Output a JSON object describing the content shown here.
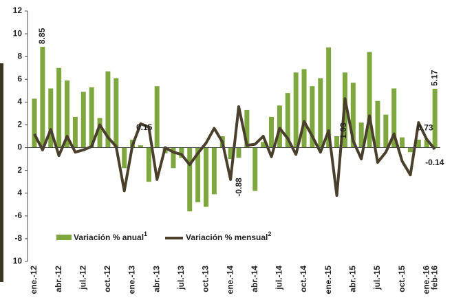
{
  "chart_data": {
    "type": "bar_line",
    "categories": [
      "ene.-12",
      null,
      null,
      "abr.-12",
      null,
      null,
      "jul.-12",
      null,
      null,
      "oct.-12",
      null,
      null,
      "ene.-13",
      null,
      null,
      "abr.-13",
      null,
      null,
      "jul.-13",
      null,
      null,
      "oct.-13",
      null,
      null,
      "ene.-14",
      null,
      null,
      "abr.-14",
      null,
      null,
      "jul.-14",
      null,
      null,
      "oct.-14",
      null,
      null,
      "ene.-15",
      null,
      null,
      "abr.-15",
      null,
      null,
      "jul.-15",
      null,
      null,
      "oct.-15",
      null,
      null,
      "ene.-16",
      "feb-16"
    ],
    "series": [
      {
        "name": "Variación % anual",
        "note": "1",
        "color": "#7ea83f",
        "kind": "bar",
        "values": [
          4.3,
          8.85,
          5.2,
          7.0,
          5.9,
          2.7,
          4.9,
          5.3,
          2.6,
          6.7,
          6.1,
          -1.8,
          0.7,
          0.2,
          -3.0,
          5.4,
          -0.5,
          -1.8,
          -0.9,
          -5.6,
          -4.8,
          -5.2,
          -4.1,
          1.0,
          -1.0,
          -0.9,
          3.3,
          -3.8,
          0.5,
          2.7,
          3.7,
          4.8,
          6.6,
          6.9,
          5.4,
          6.1,
          8.8,
          1.0,
          6.6,
          5.7,
          2.2,
          8.4,
          4.1,
          2.9,
          5.2,
          0.9,
          -0.4,
          0.7,
          0.7,
          5.17
        ]
      },
      {
        "name": "Variación % mensual",
        "note": "2",
        "color": "#4a3f2c",
        "kind": "line",
        "values": [
          1.2,
          -0.2,
          1.6,
          -0.7,
          1.0,
          -0.4,
          -0.2,
          0.1,
          2.0,
          0.9,
          0.1,
          -3.8,
          0.2,
          2.1,
          1.8,
          -2.8,
          0.0,
          -0.4,
          -0.6,
          -1.5,
          -0.5,
          0.4,
          1.7,
          0.5,
          -2.8,
          3.6,
          0.2,
          0.3,
          1.0,
          -0.8,
          1.7,
          0.8,
          -0.6,
          2.3,
          1.0,
          -0.4,
          1.5,
          -4.2,
          4.3,
          0.6,
          -1.0,
          2.8,
          -1.3,
          -0.4,
          1.2,
          -1.2,
          -2.4,
          2.2,
          0.73,
          -0.14
        ]
      }
    ],
    "labeled_points": [
      [
        0,
        1
      ],
      [
        0,
        49
      ],
      [
        1,
        48
      ],
      [
        1,
        49
      ]
    ],
    "annotations": [
      "0.15",
      "-0.88",
      "1.03"
    ],
    "ylim": [
      -10,
      12
    ],
    "yticks": [
      12,
      10,
      8,
      6,
      4,
      2,
      0,
      {
        "value": -2,
        "label": "2"
      },
      {
        "value": -4,
        "label": "4"
      },
      -6,
      -8,
      {
        "value": -10,
        "label": "10"
      }
    ]
  }
}
